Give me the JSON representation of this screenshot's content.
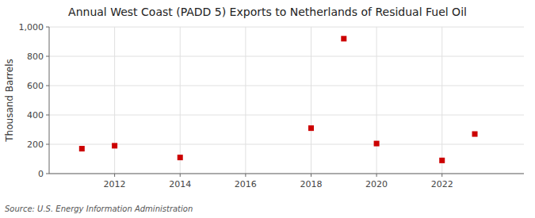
{
  "chart_data": {
    "type": "scatter",
    "title": "Annual West Coast (PADD 5) Exports to Netherlands of Residual Fuel Oil",
    "y_label": "Thousand Barrels",
    "source": "Source: U.S. Energy Information Administration",
    "x": [
      2011,
      2012,
      2014,
      2018,
      2019,
      2020,
      2022,
      2023
    ],
    "values": [
      170,
      190,
      110,
      310,
      920,
      205,
      90,
      270
    ],
    "color": "#cc0000",
    "marker": "square",
    "xlim": [
      2010.0,
      2024.5
    ],
    "ylim": [
      0,
      1000
    ],
    "xticks": [
      2012,
      2014,
      2016,
      2018,
      2020,
      2022
    ],
    "yticks": [
      0,
      200,
      400,
      600,
      800,
      {
        "value": 1000,
        "label": "1,000"
      }
    ],
    "grid": true
  }
}
